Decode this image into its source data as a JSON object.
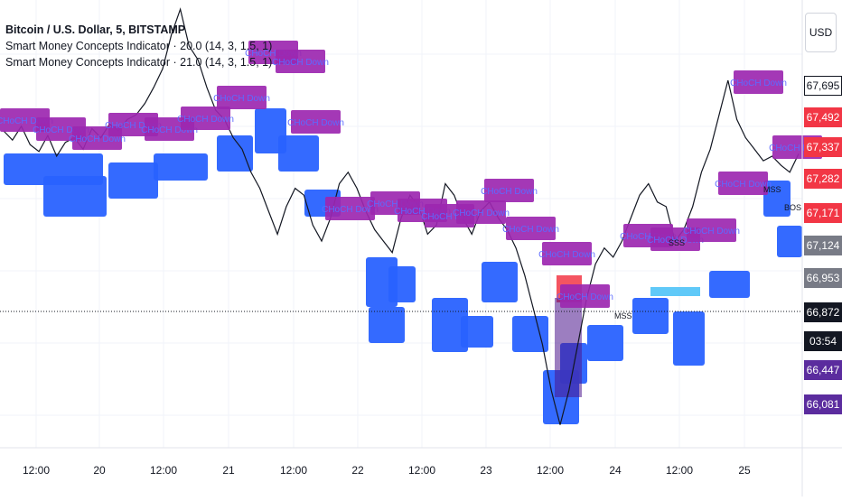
{
  "legend": {
    "title": "Bitcoin / U.S. Dollar, 5, BITSTAMP",
    "indicator1": "Smart Money Concepts Indicator · 20.0 (14, 3, 1.5, 1)",
    "indicator2": "Smart Money Concepts Indicator · 21.0 (14, 3, 1.5, 1)"
  },
  "currency_button": "USD",
  "price_labels": [
    {
      "text": "67,695",
      "bg": "#ffffff",
      "fg": "#131722",
      "border": "#131722",
      "price": 67695
    },
    {
      "text": "67,492",
      "bg": "#f23645",
      "fg": "#ffffff",
      "price": 67492
    },
    {
      "text": "67,337",
      "bg": "#f23645",
      "fg": "#ffffff",
      "price": 67337
    },
    {
      "text": "67,282",
      "bg": "#f23645",
      "fg": "#ffffff",
      "price": 67282
    },
    {
      "text": "67,171",
      "bg": "#f23645",
      "fg": "#ffffff",
      "price": 67171
    },
    {
      "text": "67,124",
      "bg": "#787b86",
      "fg": "#ffffff",
      "price": 67124
    },
    {
      "text": "66,953",
      "bg": "#787b86",
      "fg": "#ffffff",
      "price": 66953
    },
    {
      "text": "66,872",
      "bg": "#131722",
      "fg": "#ffffff",
      "price": 66872
    },
    {
      "text": "03:54",
      "bg": "#131722",
      "fg": "#ffffff",
      "price": null
    },
    {
      "text": "66,447",
      "bg": "#5b2c9e",
      "fg": "#ffffff",
      "price": 66447
    },
    {
      "text": "66,081",
      "bg": "#5b2c9e",
      "fg": "#ffffff",
      "price": 66081
    }
  ],
  "colors": {
    "bull_block": "#2962ff",
    "bear_label": "#9c27b0",
    "current_price_line": "#131722",
    "candle_line": "#131722",
    "grid": "#f0f3fa",
    "cyan_zone": "#4fc3f7",
    "red_zone": "#f23645"
  },
  "annotations": {
    "choch_label": "CHoCH Down",
    "mss": "MSS",
    "sss": "SSS",
    "bos": "BOS"
  },
  "chart_data": {
    "type": "line",
    "title": "Bitcoin / U.S. Dollar, 5, BITSTAMP",
    "xlabel": "",
    "ylabel": "",
    "x": [
      "12:00",
      "20",
      "12:00",
      "21",
      "12:00",
      "22",
      "12:00",
      "23",
      "12:00",
      "24",
      "12:00",
      "25"
    ],
    "ylim": [
      65950,
      67900
    ],
    "current_price": 66872,
    "grid": true,
    "price_series": [
      {
        "t": 0.0,
        "p": 67330
      },
      {
        "t": 0.02,
        "p": 67290
      },
      {
        "t": 0.04,
        "p": 67350
      },
      {
        "t": 0.06,
        "p": 67270
      },
      {
        "t": 0.08,
        "p": 67240
      },
      {
        "t": 0.1,
        "p": 67310
      },
      {
        "t": 0.12,
        "p": 67220
      },
      {
        "t": 0.14,
        "p": 67280
      },
      {
        "t": 0.16,
        "p": 67300
      },
      {
        "t": 0.18,
        "p": 67250
      },
      {
        "t": 0.2,
        "p": 67340
      },
      {
        "t": 0.22,
        "p": 67300
      },
      {
        "t": 0.24,
        "p": 67360
      },
      {
        "t": 0.26,
        "p": 67330
      },
      {
        "t": 0.28,
        "p": 67380
      },
      {
        "t": 0.3,
        "p": 67400
      },
      {
        "t": 0.32,
        "p": 67450
      },
      {
        "t": 0.34,
        "p": 67520
      },
      {
        "t": 0.36,
        "p": 67600
      },
      {
        "t": 0.38,
        "p": 67750
      },
      {
        "t": 0.4,
        "p": 67860
      },
      {
        "t": 0.42,
        "p": 67700
      },
      {
        "t": 0.44,
        "p": 67640
      },
      {
        "t": 0.46,
        "p": 67520
      },
      {
        "t": 0.48,
        "p": 67420
      },
      {
        "t": 0.5,
        "p": 67380
      },
      {
        "t": 0.52,
        "p": 67300
      },
      {
        "t": 0.54,
        "p": 67250
      },
      {
        "t": 0.56,
        "p": 67150
      },
      {
        "t": 0.58,
        "p": 67080
      },
      {
        "t": 0.6,
        "p": 66980
      },
      {
        "t": 0.62,
        "p": 66880
      },
      {
        "t": 0.64,
        "p": 67000
      },
      {
        "t": 0.66,
        "p": 67080
      },
      {
        "t": 0.68,
        "p": 67050
      },
      {
        "t": 0.7,
        "p": 66920
      },
      {
        "t": 0.72,
        "p": 66850
      },
      {
        "t": 0.74,
        "p": 66950
      },
      {
        "t": 0.76,
        "p": 67100
      },
      {
        "t": 0.78,
        "p": 67150
      },
      {
        "t": 0.8,
        "p": 67080
      },
      {
        "t": 0.82,
        "p": 66980
      },
      {
        "t": 0.84,
        "p": 66900
      },
      {
        "t": 0.86,
        "p": 66850
      },
      {
        "t": 0.88,
        "p": 66800
      },
      {
        "t": 0.9,
        "p": 66950
      },
      {
        "t": 0.92,
        "p": 67050
      },
      {
        "t": 0.94,
        "p": 67000
      },
      {
        "t": 0.96,
        "p": 66880
      },
      {
        "t": 0.98,
        "p": 66920
      },
      {
        "t": 1.0,
        "p": 67100
      },
      {
        "t": 1.02,
        "p": 67050
      },
      {
        "t": 1.04,
        "p": 66950
      },
      {
        "t": 1.06,
        "p": 66880
      },
      {
        "t": 1.08,
        "p": 66980
      },
      {
        "t": 1.1,
        "p": 67020
      },
      {
        "t": 1.12,
        "p": 66950
      },
      {
        "t": 1.14,
        "p": 66900
      },
      {
        "t": 1.16,
        "p": 66820
      },
      {
        "t": 1.18,
        "p": 66700
      },
      {
        "t": 1.2,
        "p": 66550
      },
      {
        "t": 1.22,
        "p": 66400
      },
      {
        "t": 1.24,
        "p": 66200
      },
      {
        "t": 1.26,
        "p": 66050
      },
      {
        "t": 1.28,
        "p": 66200
      },
      {
        "t": 1.3,
        "p": 66400
      },
      {
        "t": 1.32,
        "p": 66600
      },
      {
        "t": 1.34,
        "p": 66750
      },
      {
        "t": 1.36,
        "p": 66820
      },
      {
        "t": 1.38,
        "p": 66780
      },
      {
        "t": 1.4,
        "p": 66850
      },
      {
        "t": 1.42,
        "p": 66950
      },
      {
        "t": 1.44,
        "p": 67050
      },
      {
        "t": 1.46,
        "p": 67100
      },
      {
        "t": 1.48,
        "p": 67020
      },
      {
        "t": 1.5,
        "p": 67000
      },
      {
        "t": 1.52,
        "p": 66850
      },
      {
        "t": 1.54,
        "p": 66900
      },
      {
        "t": 1.56,
        "p": 67000
      },
      {
        "t": 1.58,
        "p": 67150
      },
      {
        "t": 1.6,
        "p": 67250
      },
      {
        "t": 1.62,
        "p": 67400
      },
      {
        "t": 1.64,
        "p": 67550
      },
      {
        "t": 1.66,
        "p": 67380
      },
      {
        "t": 1.68,
        "p": 67300
      },
      {
        "t": 1.7,
        "p": 67250
      },
      {
        "t": 1.72,
        "p": 67200
      },
      {
        "t": 1.74,
        "p": 67220
      },
      {
        "t": 1.76,
        "p": 67180
      },
      {
        "t": 1.78,
        "p": 67150
      },
      {
        "t": 1.8,
        "p": 67230
      }
    ]
  }
}
